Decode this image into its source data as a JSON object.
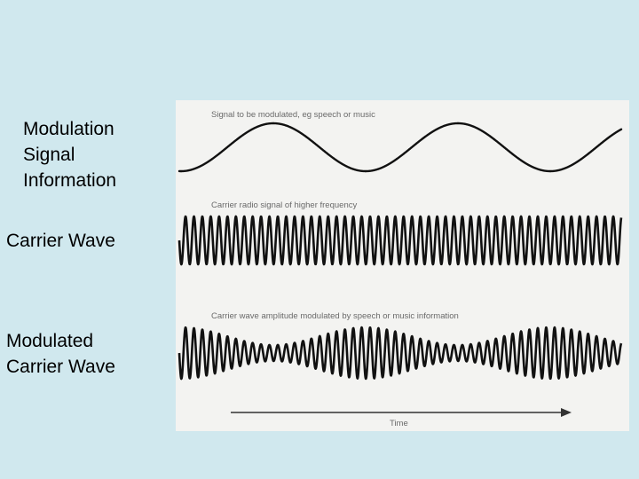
{
  "labels": {
    "modulation": [
      "Modulation",
      "Signal",
      "Information"
    ],
    "carrier": [
      "Carrier Wave"
    ],
    "modulated": [
      "Modulated",
      "Carrier Wave"
    ]
  },
  "figure": {
    "caption_signal": "Signal to be modulated, eg speech or music",
    "caption_carrier": "Carrier radio signal of higher frequency",
    "caption_modulated": "Carrier wave amplitude modulated by speech or music information",
    "axis_label": "Time"
  },
  "colors": {
    "background": "#d0e8ee",
    "figure_background": "#f3f3f1",
    "wave": "#111111",
    "caption": "#6a6a6a"
  }
}
